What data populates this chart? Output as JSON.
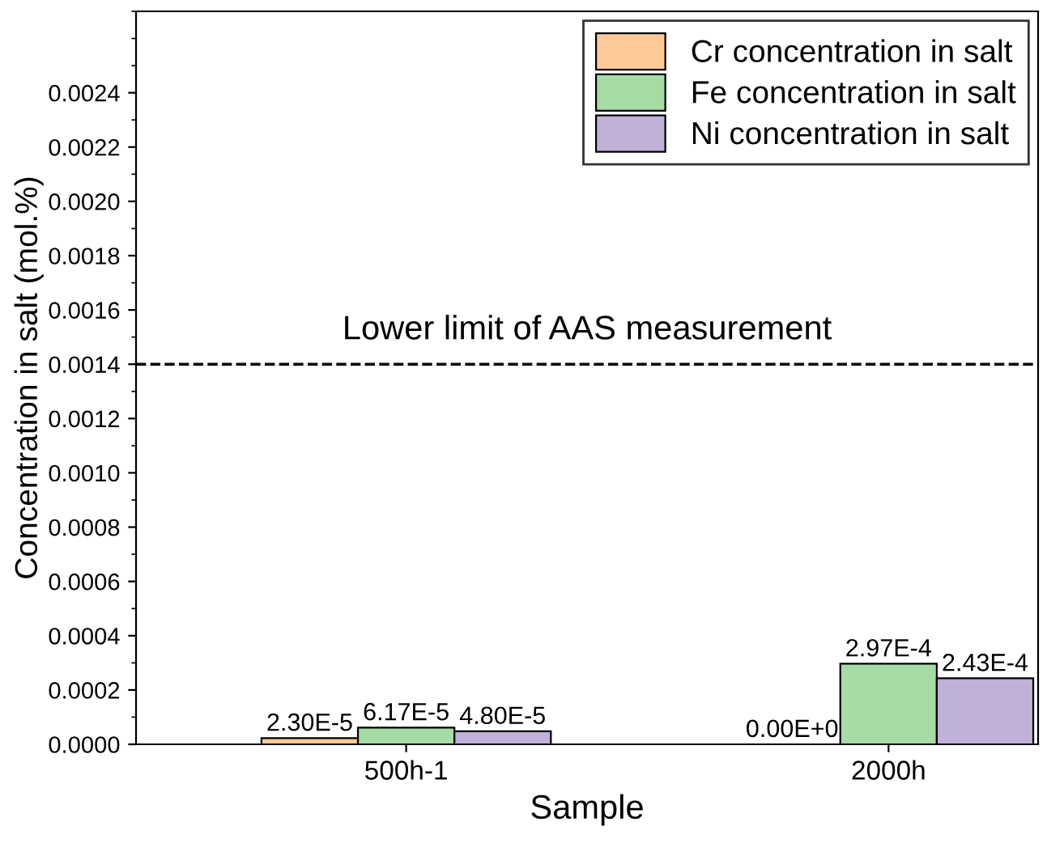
{
  "chart_data": {
    "type": "bar",
    "xlabel": "Sample",
    "ylabel": "Concentration in salt (mol.%)",
    "categories": [
      "500h-1",
      "2000h"
    ],
    "series": [
      {
        "name": "Cr concentration in salt",
        "color": "#fdca97",
        "values": [
          2.3e-05,
          0
        ],
        "value_labels": [
          "2.30E-5",
          "0.00E+0"
        ]
      },
      {
        "name": "Fe concentration in salt",
        "color": "#a4dca4",
        "values": [
          6.17e-05,
          0.000297
        ],
        "value_labels": [
          "6.17E-5",
          "2.97E-4"
        ]
      },
      {
        "name": "Ni concentration in salt",
        "color": "#c0b1d9",
        "values": [
          4.8e-05,
          0.000243
        ],
        "value_labels": [
          "4.80E-5",
          "2.43E-4"
        ]
      }
    ],
    "ylim": [
      0,
      0.0027
    ],
    "yticks": [
      "0.0000",
      "0.0002",
      "0.0004",
      "0.0006",
      "0.0008",
      "0.0010",
      "0.0012",
      "0.0014",
      "0.0016",
      "0.0018",
      "0.0020",
      "0.0022",
      "0.0024"
    ],
    "ref_lines": [
      {
        "axis": "y",
        "value": 0.0014,
        "label": "Lower limit of AAS measurement",
        "color": "#000000",
        "line_style": "dashed"
      }
    ],
    "legend": "top right",
    "grid": false
  }
}
